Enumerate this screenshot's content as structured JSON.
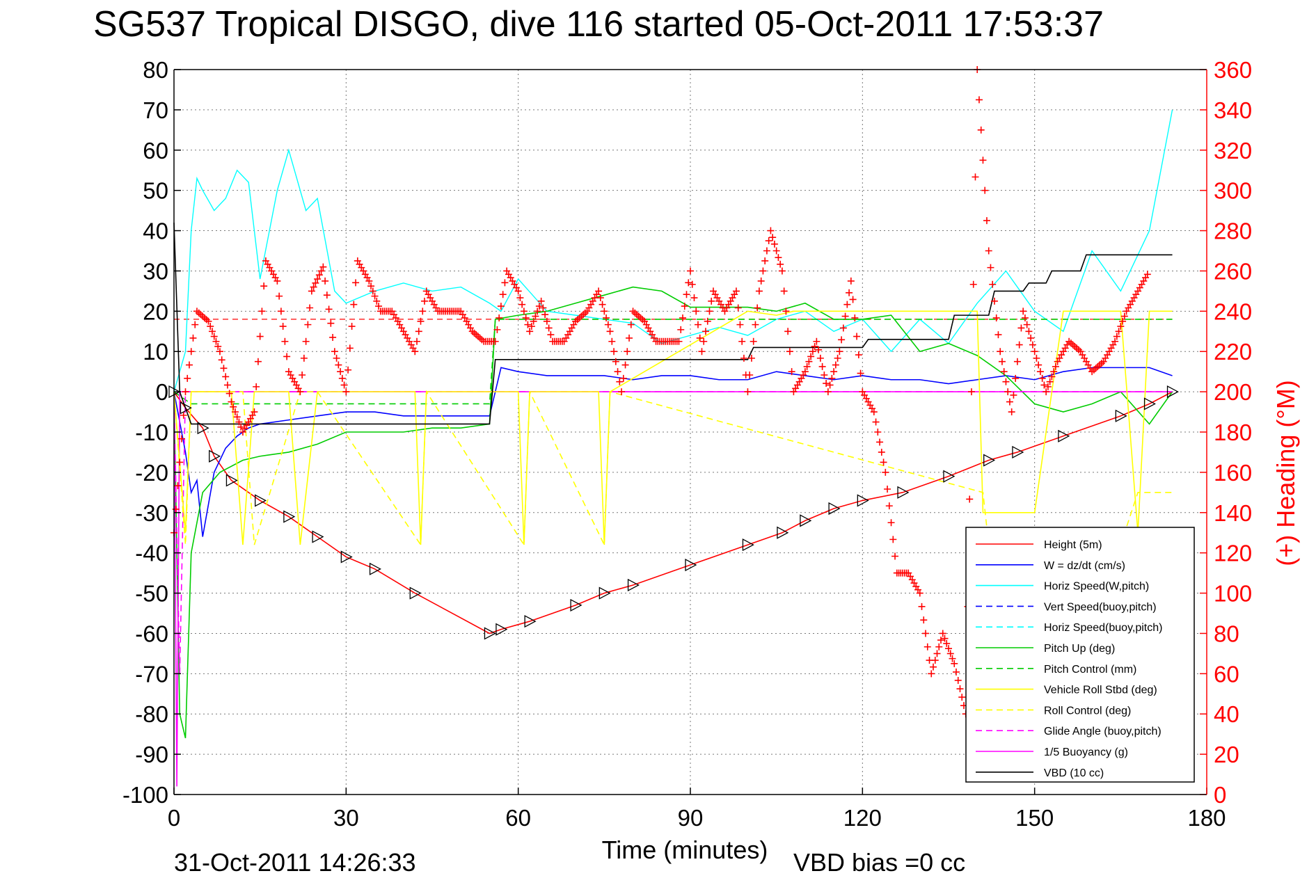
{
  "chart_data": {
    "type": "line",
    "title": "SG537 Tropical DISGO, dive 116 started 05-Oct-2011 17:53:37",
    "xlabel": "Time (minutes)",
    "ylabel_right": "(+) Heading (°M)",
    "footer_left": "31-Oct-2011 14:26:33",
    "footer_right": "VBD bias =0 cc",
    "xlim": [
      0,
      180
    ],
    "ylim": [
      -100,
      80
    ],
    "ylim_right": [
      0,
      360
    ],
    "grid": true,
    "legend_position": "lower-right",
    "x_ticks": [
      "0",
      "30",
      "60",
      "90",
      "120",
      "150",
      "180"
    ],
    "y_ticks": [
      "80",
      "70",
      "60",
      "50",
      "40",
      "30",
      "20",
      "10",
      "0",
      "-10",
      "-20",
      "-30",
      "-40",
      "-50",
      "-60",
      "-70",
      "-80",
      "-90",
      "-100"
    ],
    "y_ticks_right": [
      "360",
      "340",
      "320",
      "300",
      "280",
      "260",
      "240",
      "220",
      "200",
      "180",
      "160",
      "140",
      "120",
      "100",
      "80",
      "60",
      "40",
      "20",
      "0"
    ],
    "legend": [
      {
        "label": "Height (5m)",
        "color": "#ff0000",
        "dash": "solid"
      },
      {
        "label": "W = dz/dt (cm/s)",
        "color": "#0000ff",
        "dash": "solid"
      },
      {
        "label": "Horiz Speed(W,pitch)",
        "color": "#00ffff",
        "dash": "solid"
      },
      {
        "label": "Vert Speed(buoy,pitch)",
        "color": "#0000ff",
        "dash": "dashed"
      },
      {
        "label": "Horiz Speed(buoy,pitch)",
        "color": "#00ffff",
        "dash": "dashed"
      },
      {
        "label": "Pitch Up (deg)",
        "color": "#00cc00",
        "dash": "solid"
      },
      {
        "label": "Pitch Control (mm)",
        "color": "#00cc00",
        "dash": "dashed"
      },
      {
        "label": "Vehicle Roll Stbd (deg)",
        "color": "#ffff00",
        "dash": "solid"
      },
      {
        "label": "Roll Control (deg)",
        "color": "#ffff00",
        "dash": "dashed"
      },
      {
        "label": "Glide Angle (buoy,pitch)",
        "color": "#ff00ff",
        "dash": "dashed"
      },
      {
        "label": "1/5 Buoyancy (g)",
        "color": "#ff00ff",
        "dash": "solid"
      },
      {
        "label": "VBD (10 cc)",
        "color": "#000000",
        "dash": "solid"
      }
    ],
    "series": [
      {
        "name": "Height (5m)",
        "color": "#ff0000",
        "x": [
          0,
          2,
          5,
          7,
          10,
          15,
          20,
          25,
          30,
          35,
          42,
          55,
          57,
          62,
          70,
          75,
          80,
          90,
          100,
          106,
          110,
          115,
          120,
          127,
          135,
          142,
          147,
          155,
          165,
          170,
          174
        ],
        "y": [
          0,
          -4,
          -9,
          -16,
          -22,
          -27,
          -31,
          -36,
          -41,
          -44,
          -50,
          -60,
          -59,
          -57,
          -53,
          -50,
          -48,
          -43,
          -38,
          -35,
          -32,
          -29,
          -27,
          -25,
          -21,
          -17,
          -15,
          -11,
          -6,
          -3,
          0
        ]
      },
      {
        "name": "W = dz/dt (cm/s)",
        "color": "#0000ff",
        "x": [
          0,
          2,
          3,
          4,
          5,
          7,
          9,
          11,
          13,
          15,
          20,
          25,
          30,
          35,
          40,
          45,
          50,
          55,
          57,
          60,
          65,
          70,
          75,
          80,
          85,
          90,
          95,
          100,
          105,
          110,
          115,
          120,
          125,
          130,
          135,
          140,
          145,
          150,
          155,
          160,
          165,
          170,
          174
        ],
        "y": [
          0,
          -15,
          -25,
          -22,
          -36,
          -20,
          -14,
          -11,
          -9,
          -8,
          -7,
          -6,
          -5,
          -5,
          -6,
          -6,
          -6,
          -6,
          6,
          5,
          4,
          4,
          4,
          3,
          4,
          4,
          3,
          3,
          5,
          4,
          3,
          4,
          3,
          3,
          2,
          3,
          4,
          3,
          5,
          6,
          6,
          6,
          4
        ]
      },
      {
        "name": "Horiz Speed(W,pitch)",
        "color": "#00ffff",
        "x": [
          0,
          2,
          3,
          4,
          5,
          7,
          9,
          11,
          13,
          15,
          18,
          20,
          23,
          25,
          28,
          30,
          35,
          40,
          45,
          50,
          55,
          57,
          60,
          65,
          70,
          75,
          80,
          85,
          90,
          95,
          100,
          105,
          110,
          115,
          120,
          125,
          130,
          135,
          140,
          145,
          150,
          155,
          160,
          165,
          170,
          174
        ],
        "y": [
          0,
          10,
          40,
          53,
          50,
          45,
          48,
          55,
          52,
          28,
          50,
          60,
          45,
          48,
          25,
          22,
          25,
          27,
          25,
          26,
          22,
          20,
          28,
          20,
          19,
          18,
          17,
          12,
          14,
          16,
          14,
          18,
          20,
          15,
          18,
          10,
          18,
          12,
          22,
          30,
          20,
          15,
          35,
          25,
          40,
          70
        ]
      },
      {
        "name": "Pitch Up (deg)",
        "color": "#00cc00",
        "x": [
          0,
          1,
          2,
          3,
          5,
          8,
          12,
          15,
          20,
          25,
          30,
          35,
          40,
          45,
          50,
          55,
          56,
          60,
          65,
          70,
          75,
          80,
          85,
          90,
          95,
          100,
          105,
          110,
          115,
          120,
          125,
          130,
          135,
          140,
          145,
          150,
          155,
          160,
          165,
          170,
          174
        ],
        "y": [
          0,
          -80,
          -86,
          -40,
          -25,
          -20,
          -17,
          -16,
          -15,
          -13,
          -10,
          -10,
          -10,
          -9,
          -9,
          -8,
          18,
          19,
          20,
          22,
          24,
          26,
          25,
          21,
          21,
          21,
          20,
          22,
          18,
          18,
          19,
          10,
          12,
          9,
          4,
          -3,
          -5,
          -3,
          0,
          -8,
          0
        ]
      },
      {
        "name": "Pitch Control (mm)",
        "color": "#00cc00",
        "x": [
          0,
          3,
          55,
          56,
          174
        ],
        "y": [
          0,
          -3,
          -3,
          18,
          18
        ]
      },
      {
        "name": "Glide Angle (buoy,pitch)",
        "color": "#ff00ff",
        "x": [
          0,
          1,
          2,
          174
        ],
        "y": [
          0,
          -70,
          0,
          0
        ]
      },
      {
        "name": "1/5 Buoyancy (g)",
        "color": "#ff00ff",
        "x": [
          0,
          0.5,
          1,
          174
        ],
        "y": [
          0,
          -98,
          0,
          0
        ]
      },
      {
        "name": "Vehicle Roll Stbd (deg)",
        "color": "#ffff00",
        "x": [
          0,
          2,
          3,
          10,
          12,
          14,
          20,
          22,
          25,
          30,
          42,
          43,
          44,
          55,
          60,
          61,
          62,
          70,
          74,
          75,
          76,
          100,
          105,
          108,
          110,
          140,
          141,
          150,
          155,
          165,
          168,
          170,
          174
        ],
        "y": [
          0,
          -35,
          0,
          0,
          -38,
          0,
          0,
          -38,
          0,
          0,
          0,
          -38,
          0,
          0,
          0,
          -38,
          0,
          0,
          0,
          -38,
          0,
          20,
          19,
          20,
          20,
          20,
          -30,
          -30,
          20,
          20,
          -35,
          20,
          20
        ]
      },
      {
        "name": "Roll Control (deg)",
        "color": "#ffff00",
        "x": [
          0,
          2,
          3,
          12,
          14,
          22,
          25,
          43,
          44,
          61,
          62,
          75,
          76,
          141,
          142,
          165,
          168,
          174
        ],
        "y": [
          0,
          -38,
          0,
          0,
          -38,
          0,
          0,
          -38,
          0,
          -38,
          0,
          -38,
          0,
          -25,
          -38,
          -38,
          -25,
          -25
        ]
      },
      {
        "name": "VBD (10 cc)",
        "color": "#000000",
        "x": [
          0,
          1,
          3,
          55,
          56,
          100,
          101,
          120,
          121,
          135,
          136,
          142,
          143,
          148,
          149,
          152,
          153,
          158,
          159,
          174
        ],
        "y": [
          42,
          0,
          -8,
          -8,
          8,
          8,
          11,
          11,
          13,
          13,
          19,
          19,
          25,
          25,
          27,
          27,
          30,
          30,
          34,
          34
        ]
      },
      {
        "name": "(+) Heading (°M)",
        "color": "#ff0000",
        "marker": "+",
        "axis": "right",
        "x": [
          0,
          2,
          4,
          6,
          8,
          10,
          12,
          14,
          16,
          18,
          20,
          22,
          24,
          26,
          28,
          30,
          32,
          34,
          36,
          38,
          40,
          42,
          44,
          46,
          48,
          50,
          52,
          54,
          56,
          58,
          60,
          62,
          64,
          66,
          68,
          70,
          72,
          74,
          76,
          78,
          80,
          82,
          84,
          86,
          88,
          90,
          92,
          94,
          96,
          98,
          100,
          102,
          104,
          106,
          108,
          110,
          112,
          114,
          116,
          118,
          120,
          122,
          124,
          126,
          128,
          130,
          132,
          134,
          136,
          138,
          140,
          142,
          144,
          146,
          148,
          150,
          152,
          154,
          156,
          158,
          160,
          162,
          164,
          166,
          168,
          170
        ],
        "y": [
          130,
          200,
          240,
          235,
          220,
          195,
          180,
          190,
          265,
          255,
          210,
          200,
          250,
          262,
          220,
          200,
          265,
          255,
          240,
          240,
          230,
          220,
          250,
          240,
          240,
          240,
          230,
          225,
          225,
          260,
          250,
          230,
          245,
          225,
          225,
          235,
          240,
          250,
          230,
          200,
          240,
          235,
          225,
          225,
          225,
          260,
          220,
          250,
          240,
          250,
          200,
          250,
          280,
          260,
          200,
          210,
          225,
          200,
          220,
          255,
          200,
          190,
          160,
          110,
          110,
          100,
          60,
          80,
          65,
          40,
          360,
          270,
          220,
          190,
          240,
          220,
          200,
          215,
          225,
          220,
          210,
          215,
          225,
          240,
          250,
          260
        ]
      }
    ]
  }
}
